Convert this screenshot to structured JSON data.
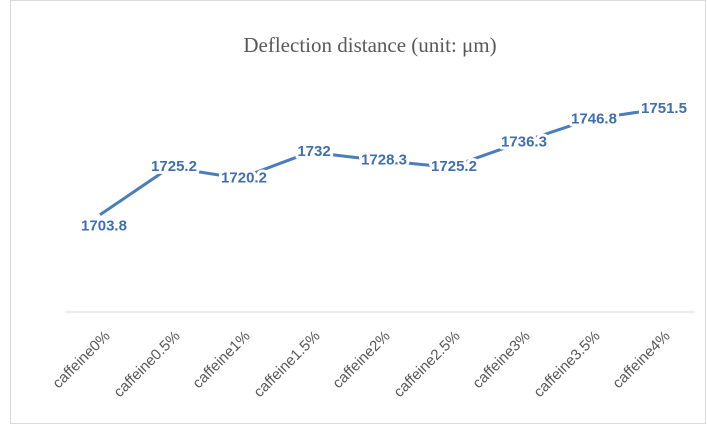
{
  "chart_data": {
    "type": "line",
    "title": "Deflection distance (unit: μm)",
    "categories": [
      "caffeine0%",
      "caffeine0.5%",
      "caffeine1%",
      "caffeine1.5%",
      "caffeine2%",
      "caffeine2.5%",
      "caffeine3%",
      "caffeine3.5%",
      "caffeine4%"
    ],
    "values": [
      1703.8,
      1725.2,
      1720.2,
      1732,
      1728.3,
      1725.2,
      1736.3,
      1746.8,
      1751.5
    ],
    "color": "#4a7ebb",
    "ylim": [
      1660,
      1760
    ]
  }
}
